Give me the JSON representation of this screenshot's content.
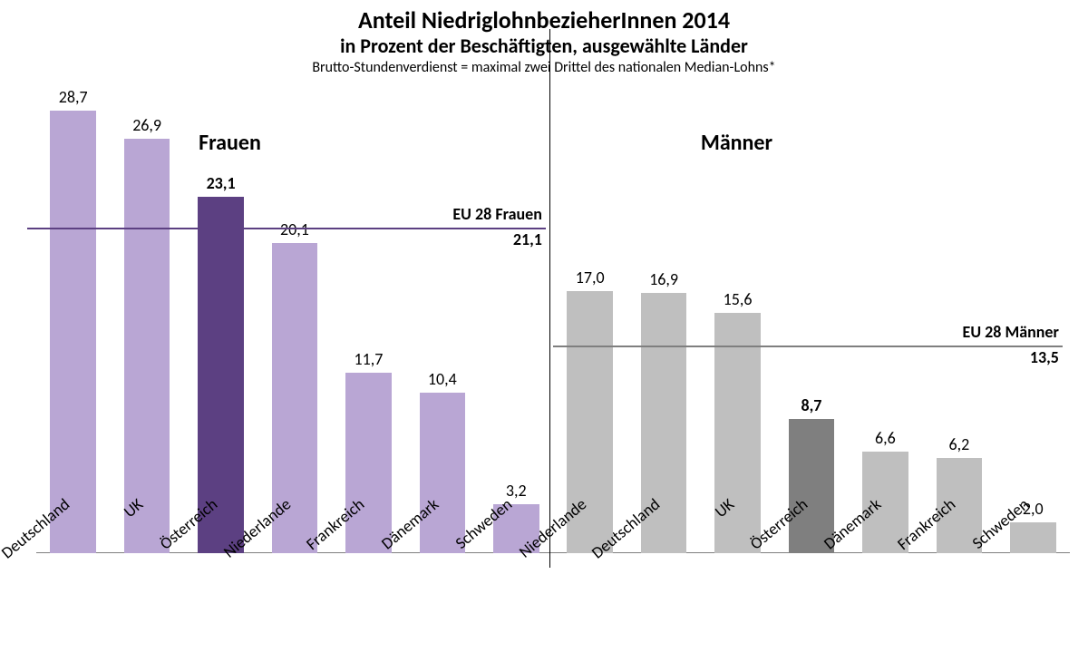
{
  "chart": {
    "type": "bar",
    "title": "Anteil NiedriglohnbezieherInnen 2014",
    "subtitle": "in Prozent der Beschäftigten, ausgewählte Länder",
    "note": "Brutto-Stundenverdienst =  maximal zwei Drittel des nationalen Median-Lohns*",
    "title_fontsize": 26,
    "subtitle_fontsize": 22,
    "note_fontsize": 16,
    "background_color": "#ffffff",
    "axis_color": "#7f7f7f",
    "divider_color": "#000000",
    "text_color": "#000000",
    "value_fontsize": 18,
    "category_fontsize": 18,
    "group_label_fontsize": 24,
    "category_label_rotation_deg": -40,
    "y_max": 30,
    "bar_width_ratio": 0.62,
    "value_decimal_separator": ",",
    "groups": [
      {
        "key": "frauen",
        "label": "Frauen",
        "bar_color": "#b9a6d4",
        "highlight_color": "#5c4082",
        "ref_line": {
          "label": "EU 28 Frauen",
          "value": 21.1,
          "line_color": "#5c4082",
          "line_width": 2.2
        },
        "bars": [
          {
            "category": "Deutschland",
            "value": 28.7,
            "highlight": false
          },
          {
            "category": "UK",
            "value": 26.9,
            "highlight": false
          },
          {
            "category": "Österreich",
            "value": 23.1,
            "highlight": true
          },
          {
            "category": "Niederlande",
            "value": 20.1,
            "highlight": false
          },
          {
            "category": "Frankreich",
            "value": 11.7,
            "highlight": false
          },
          {
            "category": "Dänemark",
            "value": 10.4,
            "highlight": false
          },
          {
            "category": "Schweden",
            "value": 3.2,
            "highlight": false
          }
        ]
      },
      {
        "key": "maenner",
        "label": "Männer",
        "bar_color": "#bfbfbf",
        "highlight_color": "#7f7f7f",
        "ref_line": {
          "label": "EU 28 Männer",
          "value": 13.5,
          "line_color": "#7f7f7f",
          "line_width": 2.2
        },
        "bars": [
          {
            "category": "Niederlande",
            "value": 17.0,
            "highlight": false
          },
          {
            "category": "Deutschland",
            "value": 16.9,
            "highlight": false
          },
          {
            "category": "UK",
            "value": 15.6,
            "highlight": false
          },
          {
            "category": "Österreich",
            "value": 8.7,
            "highlight": true
          },
          {
            "category": "Dänemark",
            "value": 6.6,
            "highlight": false
          },
          {
            "category": "Frankreich",
            "value": 6.2,
            "highlight": false
          },
          {
            "category": "Schweden",
            "value": 2.0,
            "highlight": false
          }
        ]
      }
    ]
  }
}
